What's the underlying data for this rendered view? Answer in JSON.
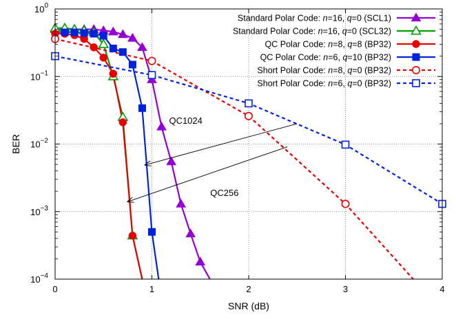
{
  "chart_data": {
    "type": "line",
    "xlabel": "SNR (dB)",
    "ylabel": "BER",
    "xlim": [
      0,
      4
    ],
    "ylim": [
      0.0001,
      1
    ],
    "yscale": "log",
    "grid": true,
    "legend_position": "top-right",
    "x_ticks": [
      "0",
      "1",
      "2",
      "3",
      "4"
    ],
    "y_ticks": [
      {
        "mantissa": "10",
        "exp": "0"
      },
      {
        "mantissa": "10",
        "exp": "−1"
      },
      {
        "mantissa": "10",
        "exp": "−2"
      },
      {
        "mantissa": "10",
        "exp": "−3"
      },
      {
        "mantissa": "10",
        "exp": "−4"
      }
    ],
    "series": [
      {
        "name": "Standard Polar Code: n=16, q=0 (SCL1)",
        "legend_parts": [
          "Standard Polar Code: ",
          "n",
          "=16, ",
          "q",
          "=0 (SCL1)"
        ],
        "color": "#9400d3",
        "dash": "solid",
        "marker": "triangle-filled",
        "x": [
          0,
          0.1,
          0.2,
          0.3,
          0.4,
          0.5,
          0.6,
          0.7,
          0.8,
          0.9,
          1.0,
          1.1,
          1.2,
          1.3,
          1.4,
          1.5,
          1.6
        ],
        "y": [
          0.5,
          0.5,
          0.5,
          0.5,
          0.5,
          0.48,
          0.46,
          0.42,
          0.37,
          0.27,
          0.09,
          0.018,
          0.0055,
          0.0013,
          0.00047,
          0.00018,
          0.0001
        ]
      },
      {
        "name": "Standard Polar Code: n=16, q=0 (SCL32)",
        "legend_parts": [
          "Standard Polar Code: ",
          "n",
          "=16, ",
          "q",
          "=0 (SCL32)"
        ],
        "color": "#009e00",
        "dash": "solid",
        "marker": "triangle-open",
        "x": [
          0,
          0.1,
          0.2,
          0.3,
          0.4,
          0.5,
          0.6,
          0.7,
          0.8,
          0.9
        ],
        "y": [
          0.52,
          0.52,
          0.5,
          0.48,
          0.45,
          0.3,
          0.1,
          0.025,
          0.00044,
          0.0001
        ]
      },
      {
        "name": "QC Polar Code: n=8, q=8 (BP32)",
        "legend_parts": [
          "QC Polar Code: ",
          "n",
          "=8, ",
          "q",
          "=8 (BP32)"
        ],
        "color": "#e80000",
        "dash": "solid",
        "marker": "circle-filled",
        "x": [
          0,
          0.1,
          0.2,
          0.3,
          0.4,
          0.5,
          0.6,
          0.7,
          0.8,
          0.9
        ],
        "y": [
          0.43,
          0.43,
          0.41,
          0.36,
          0.27,
          0.19,
          0.11,
          0.021,
          0.00044,
          0.0001
        ]
      },
      {
        "name": "QC Polar Code: n=6, q=10 (BP32)",
        "legend_parts": [
          "QC Polar Code: ",
          "n",
          "=6, ",
          "q",
          "=10 (BP32)"
        ],
        "color": "#0022e0",
        "dash": "solid",
        "marker": "square-filled",
        "x": [
          0.1,
          0.2,
          0.3,
          0.4,
          0.5,
          0.6,
          0.7,
          0.8,
          0.9,
          1.0,
          1.07
        ],
        "y": [
          0.45,
          0.45,
          0.44,
          0.43,
          0.4,
          0.26,
          0.23,
          0.15,
          0.034,
          0.0005,
          0.0001
        ]
      },
      {
        "name": "Short Polar Code: n=8, q=0 (BP32)",
        "legend_parts": [
          "Short Polar Code: ",
          "n",
          "=8, ",
          "q",
          "=0 (BP32)"
        ],
        "color": "#e80000",
        "dash": "dashed",
        "marker": "circle-open",
        "x": [
          0,
          1,
          2,
          3,
          3.7
        ],
        "y": [
          0.36,
          0.17,
          0.026,
          0.0013,
          0.0001
        ]
      },
      {
        "name": "Short Polar Code: n=6, q=0 (BP32)",
        "legend_parts": [
          "Short Polar Code: ",
          "n",
          "=6, ",
          "q",
          "=0 (BP32)"
        ],
        "color": "#0022e0",
        "dash": "dashed",
        "marker": "square-open",
        "x": [
          0,
          1,
          2,
          3,
          4
        ],
        "y": [
          0.2,
          0.105,
          0.04,
          0.0098,
          0.0013
        ]
      }
    ],
    "annotations": [
      {
        "text": "QC1024",
        "label_at": [
          1.35,
          0.02
        ],
        "arrow_from": [
          2.5,
          0.02
        ],
        "arrow_to": [
          0.93,
          0.0049
        ]
      },
      {
        "text": "QC256",
        "label_at": [
          1.75,
          0.0017
        ],
        "arrow_from": [
          2.4,
          0.0091
        ],
        "arrow_to": [
          0.75,
          0.0014
        ]
      }
    ]
  }
}
